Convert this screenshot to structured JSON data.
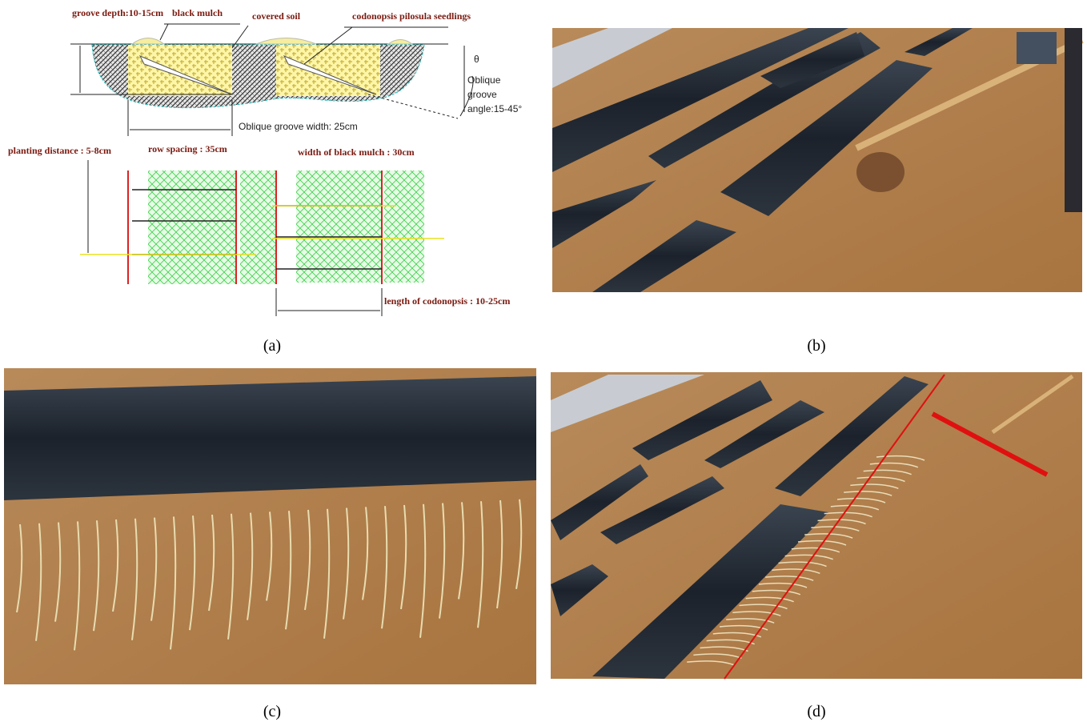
{
  "panels": [
    {
      "caption": "(a)",
      "diagram": {
        "groove_depth": "groove depth:10-15cm",
        "black_mulch": "black mulch",
        "covered_soil": "covered soil",
        "seedlings": "codonopsis pilosula seedlings",
        "theta": "θ",
        "groove_angle": [
          "Oblique",
          "groove",
          "angle:15-45°"
        ],
        "groove_width": "Oblique groove width: 25cm",
        "planting_distance": "planting distance : 5-8cm",
        "row_spacing": "row spacing : 35cm",
        "mulch_width": "width of black mulch : 30cm",
        "codonopsis_length": "length of codonopsis : 10-25cm"
      }
    },
    {
      "caption": "(b)"
    },
    {
      "caption": "(c)"
    },
    {
      "caption": "(d)"
    }
  ]
}
